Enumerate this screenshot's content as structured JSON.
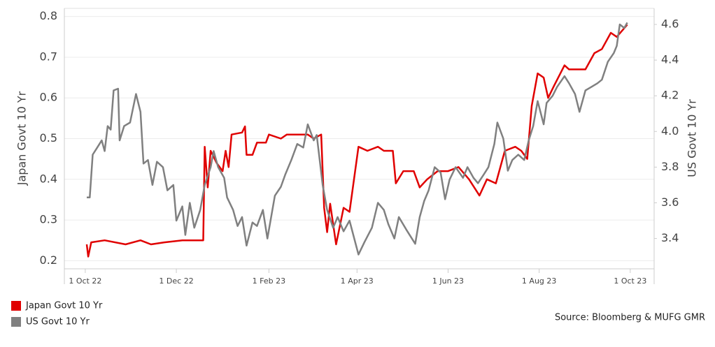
{
  "chart_data": {
    "type": "line",
    "ylabel": "Japan Govt 10 Yr",
    "y2label": "US Govt 10 Yr",
    "source": "Source: Bloomberg & MUFG GMR",
    "xlim": [
      "2022-09-17",
      "2023-10-17"
    ],
    "xticks": [
      {
        "value": "2022-10-01",
        "label": "1 Oct 22"
      },
      {
        "value": "2022-12-01",
        "label": "1 Dec 22"
      },
      {
        "value": "2023-02-01",
        "label": "1 Feb 23"
      },
      {
        "value": "2023-04-01",
        "label": "1 Apr 23"
      },
      {
        "value": "2023-06-01",
        "label": "1 Jun 23"
      },
      {
        "value": "2023-08-01",
        "label": "1 Aug 23"
      },
      {
        "value": "2023-10-01",
        "label": "1 Oct 23"
      }
    ],
    "ylim": [
      0.18,
      0.82
    ],
    "yticks": [
      0.2,
      0.3,
      0.4,
      0.5,
      0.6,
      0.7,
      0.8
    ],
    "y2lim": [
      3.23,
      4.69
    ],
    "y2ticks": [
      3.4,
      3.6,
      3.8,
      {
        "value": 4,
        "label": "4.0"
      },
      4.2,
      4.4,
      4.6
    ],
    "grid": true,
    "series": [
      {
        "name": "Japan Govt 10 Yr",
        "color": "#e00000",
        "axis": "y",
        "x": [
          "2022-10-02",
          "2022-10-03",
          "2022-10-05",
          "2022-10-14",
          "2022-10-28",
          "2022-11-07",
          "2022-11-14",
          "2022-11-23",
          "2022-12-05",
          "2022-12-19",
          "2022-12-20",
          "2022-12-22",
          "2022-12-24",
          "2022-12-28",
          "2023-01-01",
          "2023-01-03",
          "2023-01-05",
          "2023-01-07",
          "2023-01-14",
          "2023-01-16",
          "2023-01-17",
          "2023-01-21",
          "2023-01-24",
          "2023-01-30",
          "2023-02-01",
          "2023-02-09",
          "2023-02-13",
          "2023-02-27",
          "2023-03-03",
          "2023-03-08",
          "2023-03-10",
          "2023-03-12",
          "2023-03-14",
          "2023-03-18",
          "2023-03-23",
          "2023-03-27",
          "2023-04-02",
          "2023-04-08",
          "2023-04-15",
          "2023-04-19",
          "2023-04-25",
          "2023-04-27",
          "2023-05-02",
          "2023-05-09",
          "2023-05-13",
          "2023-05-18",
          "2023-05-25",
          "2023-06-01",
          "2023-06-08",
          "2023-06-15",
          "2023-06-22",
          "2023-06-27",
          "2023-07-03",
          "2023-07-09",
          "2023-07-16",
          "2023-07-20",
          "2023-07-24",
          "2023-07-27",
          "2023-07-31",
          "2023-08-04",
          "2023-08-07",
          "2023-08-11",
          "2023-08-18",
          "2023-08-21",
          "2023-08-27",
          "2023-09-01",
          "2023-09-07",
          "2023-09-12",
          "2023-09-18",
          "2023-09-22",
          "2023-09-29"
        ],
        "values": [
          0.24,
          0.21,
          0.245,
          0.25,
          0.24,
          0.25,
          0.24,
          0.245,
          0.25,
          0.25,
          0.48,
          0.38,
          0.47,
          0.44,
          0.42,
          0.47,
          0.43,
          0.51,
          0.515,
          0.53,
          0.46,
          0.46,
          0.49,
          0.49,
          0.51,
          0.5,
          0.51,
          0.51,
          0.5,
          0.51,
          0.33,
          0.27,
          0.34,
          0.24,
          0.33,
          0.32,
          0.48,
          0.47,
          0.48,
          0.47,
          0.47,
          0.39,
          0.42,
          0.42,
          0.38,
          0.4,
          0.42,
          0.42,
          0.43,
          0.4,
          0.36,
          0.4,
          0.39,
          0.47,
          0.48,
          0.47,
          0.45,
          0.58,
          0.66,
          0.65,
          0.6,
          0.63,
          0.68,
          0.67,
          0.67,
          0.67,
          0.71,
          0.72,
          0.76,
          0.75,
          0.78
        ]
      },
      {
        "name": "US Govt 10 Yr",
        "color": "#808080",
        "axis": "y2",
        "x": [
          "2022-10-02",
          "2022-10-04",
          "2022-10-06",
          "2022-10-09",
          "2022-10-12",
          "2022-10-14",
          "2022-10-16",
          "2022-10-18",
          "2022-10-20",
          "2022-10-23",
          "2022-10-24",
          "2022-10-27",
          "2022-10-31",
          "2022-11-04",
          "2022-11-07",
          "2022-11-09",
          "2022-11-12",
          "2022-11-15",
          "2022-11-18",
          "2022-11-22",
          "2022-11-25",
          "2022-11-29",
          "2022-12-01",
          "2022-12-05",
          "2022-12-07",
          "2022-12-10",
          "2022-12-13",
          "2022-12-17",
          "2022-12-20",
          "2022-12-24",
          "2022-12-26",
          "2022-12-29",
          "2023-01-02",
          "2023-01-04",
          "2023-01-08",
          "2023-01-11",
          "2023-01-14",
          "2023-01-17",
          "2023-01-21",
          "2023-01-24",
          "2023-01-28",
          "2023-01-31",
          "2023-02-05",
          "2023-02-09",
          "2023-02-12",
          "2023-02-16",
          "2023-02-20",
          "2023-02-24",
          "2023-02-27",
          "2023-03-03",
          "2023-03-05",
          "2023-03-09",
          "2023-03-12",
          "2023-03-16",
          "2023-03-19",
          "2023-03-23",
          "2023-03-27",
          "2023-04-02",
          "2023-04-06",
          "2023-04-11",
          "2023-04-15",
          "2023-04-19",
          "2023-04-22",
          "2023-04-26",
          "2023-04-29",
          "2023-05-04",
          "2023-05-10",
          "2023-05-13",
          "2023-05-16",
          "2023-05-19",
          "2023-05-23",
          "2023-05-27",
          "2023-05-30",
          "2023-06-02",
          "2023-06-06",
          "2023-06-11",
          "2023-06-14",
          "2023-06-18",
          "2023-06-21",
          "2023-06-25",
          "2023-06-28",
          "2023-07-02",
          "2023-07-04",
          "2023-07-08",
          "2023-07-11",
          "2023-07-14",
          "2023-07-18",
          "2023-07-22",
          "2023-07-25",
          "2023-07-28",
          "2023-07-31",
          "2023-08-04",
          "2023-08-06",
          "2023-08-10",
          "2023-08-13",
          "2023-08-18",
          "2023-08-21",
          "2023-08-25",
          "2023-08-28",
          "2023-09-01",
          "2023-09-05",
          "2023-09-09",
          "2023-09-12",
          "2023-09-16",
          "2023-09-20",
          "2023-09-22",
          "2023-09-24",
          "2023-09-27",
          "2023-09-29"
        ],
        "values": [
          3.63,
          3.63,
          3.87,
          3.91,
          3.95,
          3.89,
          4.03,
          4.01,
          4.23,
          4.24,
          3.95,
          4.03,
          4.05,
          4.21,
          4.11,
          3.82,
          3.84,
          3.7,
          3.83,
          3.8,
          3.67,
          3.7,
          3.5,
          3.58,
          3.42,
          3.6,
          3.46,
          3.56,
          3.7,
          3.8,
          3.89,
          3.8,
          3.74,
          3.63,
          3.56,
          3.47,
          3.52,
          3.36,
          3.49,
          3.47,
          3.56,
          3.4,
          3.64,
          3.69,
          3.76,
          3.84,
          3.93,
          3.91,
          4.04,
          3.95,
          3.98,
          3.7,
          3.56,
          3.46,
          3.52,
          3.44,
          3.5,
          3.31,
          3.38,
          3.46,
          3.6,
          3.56,
          3.48,
          3.4,
          3.52,
          3.45,
          3.37,
          3.52,
          3.61,
          3.67,
          3.8,
          3.77,
          3.62,
          3.73,
          3.8,
          3.74,
          3.8,
          3.74,
          3.71,
          3.76,
          3.8,
          3.93,
          4.05,
          3.96,
          3.78,
          3.84,
          3.87,
          3.84,
          3.95,
          4.03,
          4.17,
          4.04,
          4.16,
          4.2,
          4.25,
          4.31,
          4.27,
          4.21,
          4.11,
          4.23,
          4.25,
          4.27,
          4.29,
          4.39,
          4.44,
          4.48,
          4.6,
          4.58,
          4.61
        ]
      }
    ]
  }
}
